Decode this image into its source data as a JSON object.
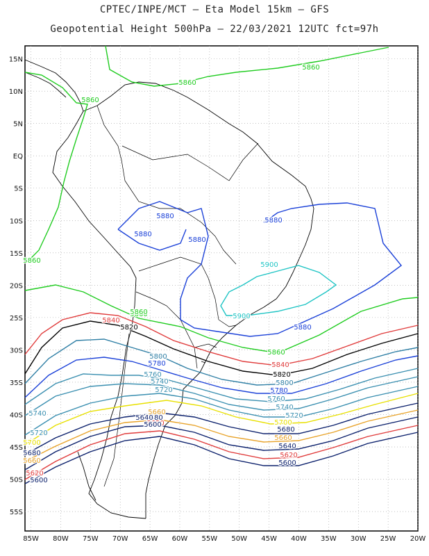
{
  "header": {
    "line1": "CPTEC/INPE/MCT –  Eta Model 15km – GFS",
    "line2": "Geopotential Height 500hPa – 22/03/2021 12UTC fct=97h"
  },
  "axes": {
    "lat_labels": [
      "15N",
      "10N",
      "5N",
      "EQ",
      "5S",
      "10S",
      "15S",
      "20S",
      "25S",
      "30S",
      "35S",
      "40S",
      "45S",
      "50S",
      "55S"
    ],
    "lat_values": [
      15,
      10,
      5,
      0,
      -5,
      -10,
      -15,
      -20,
      -25,
      -30,
      -35,
      -40,
      -45,
      -50,
      -55
    ],
    "lon_labels": [
      "85W",
      "80W",
      "75W",
      "70W",
      "65W",
      "60W",
      "55W",
      "50W",
      "45W",
      "40W",
      "35W",
      "30W",
      "25W",
      "20W"
    ],
    "lon_values": [
      -85,
      -80,
      -75,
      -70,
      -65,
      -60,
      -55,
      -50,
      -45,
      -40,
      -35,
      -30,
      -25,
      -20
    ]
  },
  "contour_colors": {
    "5600": "#0a1f6b",
    "5620": "#e03b3b",
    "5640": "#0a1f6b",
    "5660": "#e8a32a",
    "5680": "#0a1f6b",
    "5700": "#e8e000",
    "5720": "#3a8fb0",
    "5740": "#3a8fb0",
    "5760": "#3a8fb0",
    "5780": "#1a40d8",
    "5800": "#2f7fa5",
    "5820": "#000000",
    "5840": "#e03b3b",
    "5860": "#1fcc1f",
    "5880": "#1a40d8",
    "5900": "#1ec4c4"
  },
  "contour_labels": [
    {
      "text": "5860"
    },
    {
      "text": "5860"
    },
    {
      "text": "5860"
    },
    {
      "text": "5860"
    },
    {
      "text": "5860"
    },
    {
      "text": "5860"
    },
    {
      "text": "5880"
    },
    {
      "text": "5880"
    },
    {
      "text": "5880"
    },
    {
      "text": "5880"
    },
    {
      "text": "5880"
    },
    {
      "text": "5900"
    },
    {
      "text": "5900"
    },
    {
      "text": "5840"
    },
    {
      "text": "5840"
    },
    {
      "text": "5820"
    },
    {
      "text": "5820"
    },
    {
      "text": "5800"
    },
    {
      "text": "5800"
    },
    {
      "text": "5780"
    },
    {
      "text": "5780"
    },
    {
      "text": "5760"
    },
    {
      "text": "5760"
    },
    {
      "text": "5740"
    },
    {
      "text": "5740"
    },
    {
      "text": "5740"
    },
    {
      "text": "5720"
    },
    {
      "text": "5720"
    },
    {
      "text": "5720"
    },
    {
      "text": "5700"
    },
    {
      "text": "5700"
    },
    {
      "text": "5680"
    },
    {
      "text": "5680"
    },
    {
      "text": "5680"
    },
    {
      "text": "5660"
    },
    {
      "text": "5660"
    },
    {
      "text": "5660"
    },
    {
      "text": "5640"
    },
    {
      "text": "5640"
    },
    {
      "text": "5620"
    },
    {
      "text": "5620"
    },
    {
      "text": "5620"
    },
    {
      "text": "5600"
    },
    {
      "text": "5600"
    },
    {
      "text": "5600"
    },
    {
      "text": "5860"
    }
  ]
}
